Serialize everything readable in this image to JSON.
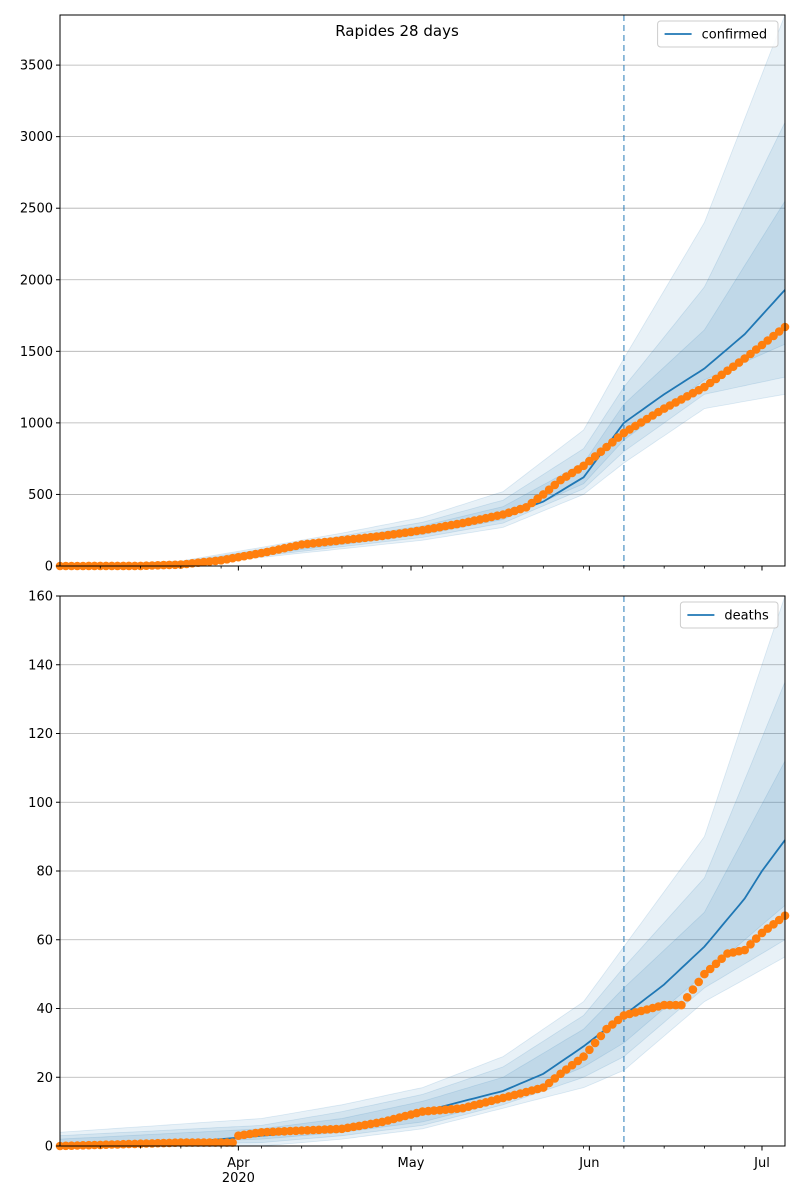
{
  "figure": {
    "title": "Rapides 28 days"
  },
  "chart_data": [
    {
      "type": "line",
      "title": "Rapides 28 days",
      "legend": {
        "entries": [
          "confirmed"
        ],
        "position": "top-right"
      },
      "ylim": [
        0,
        3850
      ],
      "yticks": [
        0,
        500,
        1000,
        1500,
        2000,
        2500,
        3000,
        3500
      ],
      "grid": "horizontal",
      "x_start": "2020-03-01",
      "x_end": "2020-07-05",
      "xticks": [
        {
          "date": "2020-04-01",
          "label": "Apr"
        },
        {
          "date": "2020-05-01",
          "label": "May"
        },
        {
          "date": "2020-06-01",
          "label": "Jun"
        },
        {
          "date": "2020-07-01",
          "label": "Jul"
        }
      ],
      "year_label": "2020",
      "forecast_start": "2020-06-07",
      "series": [
        {
          "name": "confirmed",
          "role": "model median",
          "points": [
            [
              "2020-03-01",
              0
            ],
            [
              "2020-03-15",
              2
            ],
            [
              "2020-03-22",
              15
            ],
            [
              "2020-03-29",
              55
            ],
            [
              "2020-04-05",
              95
            ],
            [
              "2020-04-12",
              140
            ],
            [
              "2020-04-19",
              175
            ],
            [
              "2020-04-26",
              205
            ],
            [
              "2020-05-03",
              245
            ],
            [
              "2020-05-10",
              290
            ],
            [
              "2020-05-17",
              350
            ],
            [
              "2020-05-24",
              450
            ],
            [
              "2020-05-31",
              620
            ],
            [
              "2020-06-07",
              1000
            ],
            [
              "2020-06-14",
              1200
            ],
            [
              "2020-06-21",
              1380
            ],
            [
              "2020-06-28",
              1620
            ],
            [
              "2020-07-05",
              1930
            ]
          ]
        },
        {
          "role": "observed",
          "points": [
            [
              "2020-03-01",
              0
            ],
            [
              "2020-03-15",
              1
            ],
            [
              "2020-03-22",
              10
            ],
            [
              "2020-03-29",
              40
            ],
            [
              "2020-04-05",
              90
            ],
            [
              "2020-04-12",
              150
            ],
            [
              "2020-04-19",
              180
            ],
            [
              "2020-04-26",
              210
            ],
            [
              "2020-05-03",
              250
            ],
            [
              "2020-05-10",
              300
            ],
            [
              "2020-05-17",
              360
            ],
            [
              "2020-05-21",
              410
            ],
            [
              "2020-05-24",
              500
            ],
            [
              "2020-05-27",
              600
            ],
            [
              "2020-05-31",
              700
            ],
            [
              "2020-06-07",
              930
            ],
            [
              "2020-06-14",
              1100
            ],
            [
              "2020-06-21",
              1250
            ],
            [
              "2020-06-28",
              1450
            ],
            [
              "2020-07-05",
              1670
            ]
          ]
        }
      ],
      "bands": [
        {
          "lower": [
            [
              "2020-03-01",
              0
            ],
            [
              "2020-03-22",
              0
            ],
            [
              "2020-04-05",
              60
            ],
            [
              "2020-04-19",
              120
            ],
            [
              "2020-05-03",
              180
            ],
            [
              "2020-05-17",
              270
            ],
            [
              "2020-05-31",
              500
            ],
            [
              "2020-06-07",
              720
            ],
            [
              "2020-06-21",
              1100
            ],
            [
              "2020-07-05",
              1200
            ]
          ],
          "upper": [
            [
              "2020-03-01",
              0
            ],
            [
              "2020-03-22",
              35
            ],
            [
              "2020-04-05",
              130
            ],
            [
              "2020-04-19",
              230
            ],
            [
              "2020-05-03",
              340
            ],
            [
              "2020-05-17",
              520
            ],
            [
              "2020-05-31",
              950
            ],
            [
              "2020-06-07",
              1450
            ],
            [
              "2020-06-21",
              2400
            ],
            [
              "2020-07-05",
              3850
            ]
          ]
        },
        {
          "lower": [
            [
              "2020-03-01",
              0
            ],
            [
              "2020-03-22",
              2
            ],
            [
              "2020-04-05",
              70
            ],
            [
              "2020-04-19",
              135
            ],
            [
              "2020-05-03",
              200
            ],
            [
              "2020-05-17",
              300
            ],
            [
              "2020-05-31",
              540
            ],
            [
              "2020-06-07",
              800
            ],
            [
              "2020-06-21",
              1200
            ],
            [
              "2020-07-05",
              1320
            ]
          ],
          "upper": [
            [
              "2020-03-01",
              0
            ],
            [
              "2020-03-22",
              28
            ],
            [
              "2020-04-05",
              118
            ],
            [
              "2020-04-19",
              210
            ],
            [
              "2020-05-03",
              305
            ],
            [
              "2020-05-17",
              460
            ],
            [
              "2020-05-31",
              820
            ],
            [
              "2020-06-07",
              1250
            ],
            [
              "2020-06-21",
              1950
            ],
            [
              "2020-07-05",
              3100
            ]
          ]
        },
        {
          "lower": [
            [
              "2020-03-01",
              0
            ],
            [
              "2020-03-22",
              5
            ],
            [
              "2020-04-05",
              80
            ],
            [
              "2020-04-19",
              150
            ],
            [
              "2020-05-03",
              220
            ],
            [
              "2020-05-17",
              325
            ],
            [
              "2020-05-31",
              575
            ],
            [
              "2020-06-07",
              880
            ],
            [
              "2020-06-21",
              1300
            ],
            [
              "2020-07-05",
              1550
            ]
          ],
          "upper": [
            [
              "2020-03-01",
              0
            ],
            [
              "2020-03-22",
              22
            ],
            [
              "2020-04-05",
              108
            ],
            [
              "2020-04-19",
              195
            ],
            [
              "2020-05-03",
              280
            ],
            [
              "2020-05-17",
              415
            ],
            [
              "2020-05-31",
              720
            ],
            [
              "2020-06-07",
              1130
            ],
            [
              "2020-06-21",
              1650
            ],
            [
              "2020-07-05",
              2550
            ]
          ]
        }
      ]
    },
    {
      "type": "line",
      "legend": {
        "entries": [
          "deaths"
        ],
        "position": "top-right"
      },
      "ylim": [
        0,
        160
      ],
      "yticks": [
        0,
        20,
        40,
        60,
        80,
        100,
        120,
        140,
        160
      ],
      "grid": "horizontal",
      "x_start": "2020-03-01",
      "x_end": "2020-07-05",
      "xticks": [
        {
          "date": "2020-04-01",
          "label": "Apr"
        },
        {
          "date": "2020-05-01",
          "label": "May"
        },
        {
          "date": "2020-06-01",
          "label": "Jun"
        },
        {
          "date": "2020-07-01",
          "label": "Jul"
        }
      ],
      "year_label": "2020",
      "forecast_start": "2020-06-07",
      "series": [
        {
          "name": "deaths",
          "role": "model median",
          "points": [
            [
              "2020-03-01",
              0
            ],
            [
              "2020-03-22",
              1
            ],
            [
              "2020-04-05",
              3
            ],
            [
              "2020-04-19",
              5
            ],
            [
              "2020-05-03",
              10
            ],
            [
              "2020-05-17",
              16
            ],
            [
              "2020-05-24",
              21
            ],
            [
              "2020-05-31",
              29
            ],
            [
              "2020-06-07",
              38
            ],
            [
              "2020-06-14",
              47
            ],
            [
              "2020-06-21",
              58
            ],
            [
              "2020-06-28",
              72
            ],
            [
              "2020-07-01",
              80
            ],
            [
              "2020-07-05",
              89
            ]
          ]
        },
        {
          "role": "observed",
          "points": [
            [
              "2020-03-01",
              0
            ],
            [
              "2020-03-22",
              1
            ],
            [
              "2020-03-31",
              1
            ],
            [
              "2020-04-01",
              3
            ],
            [
              "2020-04-05",
              4
            ],
            [
              "2020-04-19",
              5
            ],
            [
              "2020-04-26",
              7
            ],
            [
              "2020-05-03",
              10
            ],
            [
              "2020-05-10",
              11
            ],
            [
              "2020-05-17",
              14
            ],
            [
              "2020-05-24",
              17
            ],
            [
              "2020-05-27",
              21
            ],
            [
              "2020-05-31",
              26
            ],
            [
              "2020-06-04",
              34
            ],
            [
              "2020-06-07",
              38
            ],
            [
              "2020-06-14",
              41
            ],
            [
              "2020-06-17",
              41
            ],
            [
              "2020-06-21",
              50
            ],
            [
              "2020-06-25",
              56
            ],
            [
              "2020-06-28",
              57
            ],
            [
              "2020-07-01",
              62
            ],
            [
              "2020-07-05",
              67
            ]
          ]
        }
      ],
      "bands": [
        {
          "lower": [
            [
              "2020-03-01",
              0
            ],
            [
              "2020-04-05",
              0
            ],
            [
              "2020-04-19",
              2
            ],
            [
              "2020-05-03",
              5
            ],
            [
              "2020-05-17",
              11
            ],
            [
              "2020-05-31",
              17
            ],
            [
              "2020-06-07",
              22
            ],
            [
              "2020-06-21",
              42
            ],
            [
              "2020-07-05",
              55
            ]
          ],
          "upper": [
            [
              "2020-03-01",
              4
            ],
            [
              "2020-04-05",
              8
            ],
            [
              "2020-04-19",
              12
            ],
            [
              "2020-05-03",
              17
            ],
            [
              "2020-05-17",
              26
            ],
            [
              "2020-05-31",
              42
            ],
            [
              "2020-06-07",
              58
            ],
            [
              "2020-06-21",
              90
            ],
            [
              "2020-07-05",
              160
            ]
          ]
        },
        {
          "lower": [
            [
              "2020-03-01",
              0
            ],
            [
              "2020-04-05",
              1
            ],
            [
              "2020-04-19",
              3
            ],
            [
              "2020-05-03",
              6
            ],
            [
              "2020-05-17",
              12
            ],
            [
              "2020-05-31",
              20
            ],
            [
              "2020-06-07",
              26
            ],
            [
              "2020-06-21",
              46
            ],
            [
              "2020-07-05",
              60
            ]
          ],
          "upper": [
            [
              "2020-03-01",
              3
            ],
            [
              "2020-04-05",
              6
            ],
            [
              "2020-04-19",
              10
            ],
            [
              "2020-05-03",
              15
            ],
            [
              "2020-05-17",
              23
            ],
            [
              "2020-05-31",
              38
            ],
            [
              "2020-06-07",
              52
            ],
            [
              "2020-06-21",
              78
            ],
            [
              "2020-07-05",
              135
            ]
          ]
        },
        {
          "lower": [
            [
              "2020-03-01",
              0
            ],
            [
              "2020-04-05",
              2
            ],
            [
              "2020-04-19",
              4
            ],
            [
              "2020-05-03",
              7
            ],
            [
              "2020-05-17",
              13
            ],
            [
              "2020-05-31",
              23
            ],
            [
              "2020-06-07",
              30
            ],
            [
              "2020-06-21",
              50
            ],
            [
              "2020-07-05",
              70
            ]
          ],
          "upper": [
            [
              "2020-03-01",
              2
            ],
            [
              "2020-04-05",
              5
            ],
            [
              "2020-04-19",
              8
            ],
            [
              "2020-05-03",
              13
            ],
            [
              "2020-05-17",
              20
            ],
            [
              "2020-05-31",
              34
            ],
            [
              "2020-06-07",
              46
            ],
            [
              "2020-06-21",
              68
            ],
            [
              "2020-07-05",
              112
            ]
          ]
        }
      ]
    }
  ],
  "colors": {
    "median_line": "#1f77b4",
    "observed_points": "#ff7f0e",
    "band_fill": "#1f77b4",
    "forecast_divider": "#1f77b4",
    "grid": "#b0b0b0"
  }
}
